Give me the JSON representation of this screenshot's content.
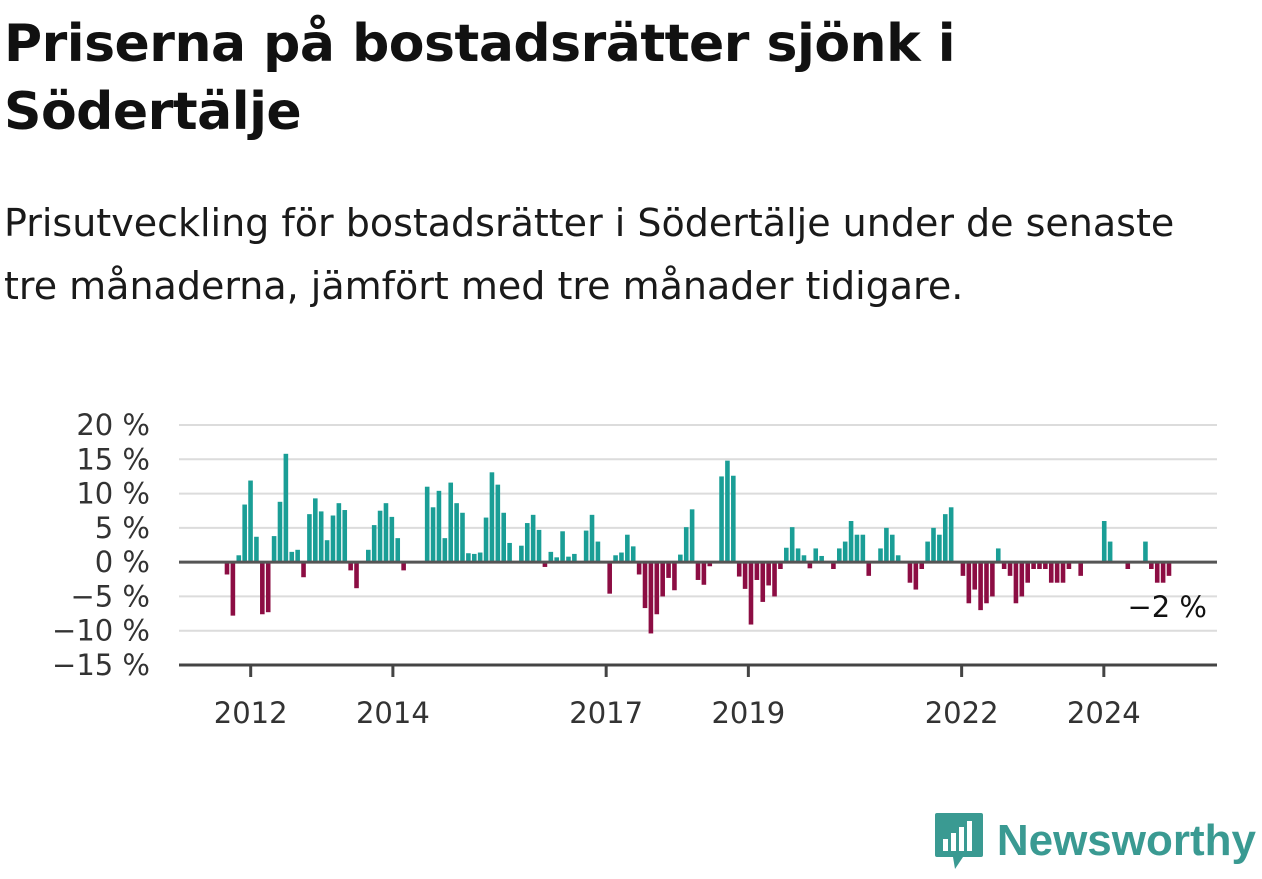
{
  "chart_data": {
    "type": "bar",
    "title": "Priserna på bostadsrätter sjönk i Södertälje",
    "subtitle": "Prisutveckling för bostadsrätter i Södertälje under de senaste tre månaderna, jämfört med tre månader tidigare.",
    "xlabel": "",
    "ylabel": "",
    "ylim": [
      -15,
      20
    ],
    "y_ticks": [
      "20 %",
      "15 %",
      "10 %",
      "5 %",
      "0 %",
      "−5 %",
      "−10 %",
      "−15 %"
    ],
    "y_tick_values": [
      20,
      15,
      10,
      5,
      0,
      -5,
      -10,
      -15
    ],
    "x_ticks": [
      "2012",
      "2014",
      "2017",
      "2019",
      "2022",
      "2024"
    ],
    "x_tick_years": [
      2012,
      2014,
      2017,
      2019,
      2022,
      2024
    ],
    "x_start": "2011-09",
    "x_end": "2024-12",
    "grid": true,
    "positive_color": "#1a9e96",
    "negative_color": "#8c0d43",
    "values": [
      -1.8,
      -7.8,
      1.0,
      8.4,
      11.9,
      3.7,
      -7.6,
      -7.3,
      3.8,
      8.8,
      15.8,
      1.5,
      1.8,
      -2.2,
      7.0,
      9.3,
      7.4,
      3.2,
      6.8,
      8.6,
      7.6,
      -1.2,
      -3.8,
      0,
      1.8,
      5.4,
      7.5,
      8.6,
      6.6,
      3.5,
      -1.2,
      0,
      0,
      0,
      11.0,
      8.0,
      10.4,
      3.5,
      11.6,
      8.6,
      7.2,
      1.3,
      1.2,
      1.4,
      6.5,
      13.1,
      11.3,
      7.2,
      2.8,
      0,
      2.4,
      5.7,
      6.9,
      4.7,
      -0.7,
      1.5,
      0.7,
      4.5,
      0.8,
      1.2,
      0,
      4.6,
      6.9,
      3.0,
      0,
      -4.6,
      1.0,
      1.4,
      4.0,
      2.3,
      -1.8,
      -6.7,
      -10.4,
      -7.6,
      -5.0,
      -2.3,
      -4.1,
      1.1,
      5.1,
      7.7,
      -2.6,
      -3.3,
      -0.6,
      0,
      12.5,
      14.8,
      12.6,
      -2.1,
      -3.9,
      -9.1,
      -2.6,
      -5.8,
      -3.4,
      -5.0,
      -1.0,
      2.1,
      5.1,
      2.0,
      1.0,
      -0.9,
      2.0,
      0.9,
      0,
      -1.0,
      2.0,
      3.0,
      6.0,
      4.0,
      4.0,
      -2.0,
      0,
      2.0,
      5.0,
      4.0,
      1.0,
      0,
      -3.0,
      -4.0,
      -1.0,
      3.0,
      5.0,
      4.0,
      7.0,
      8.0,
      0,
      -2.0,
      -6.0,
      -4.0,
      -7.0,
      -6.0,
      -5.0,
      2.0,
      -1.0,
      -2.0,
      -6.0,
      -5.0,
      -3.0,
      -1.0,
      -1.0,
      -1.0,
      -3.0,
      -3.0,
      -3.0,
      -1.0,
      0,
      -2.0,
      0,
      0,
      0,
      6.0,
      3.0,
      0,
      0,
      -1.0,
      0,
      0,
      3.0,
      -1.0,
      -3.0,
      -3.0,
      -2.0
    ],
    "annotation": {
      "text": "−2 %"
    }
  },
  "brand": {
    "name": "Newsworthy",
    "color": "#3a9a92",
    "icon": "newsworthy-logo-icon"
  }
}
